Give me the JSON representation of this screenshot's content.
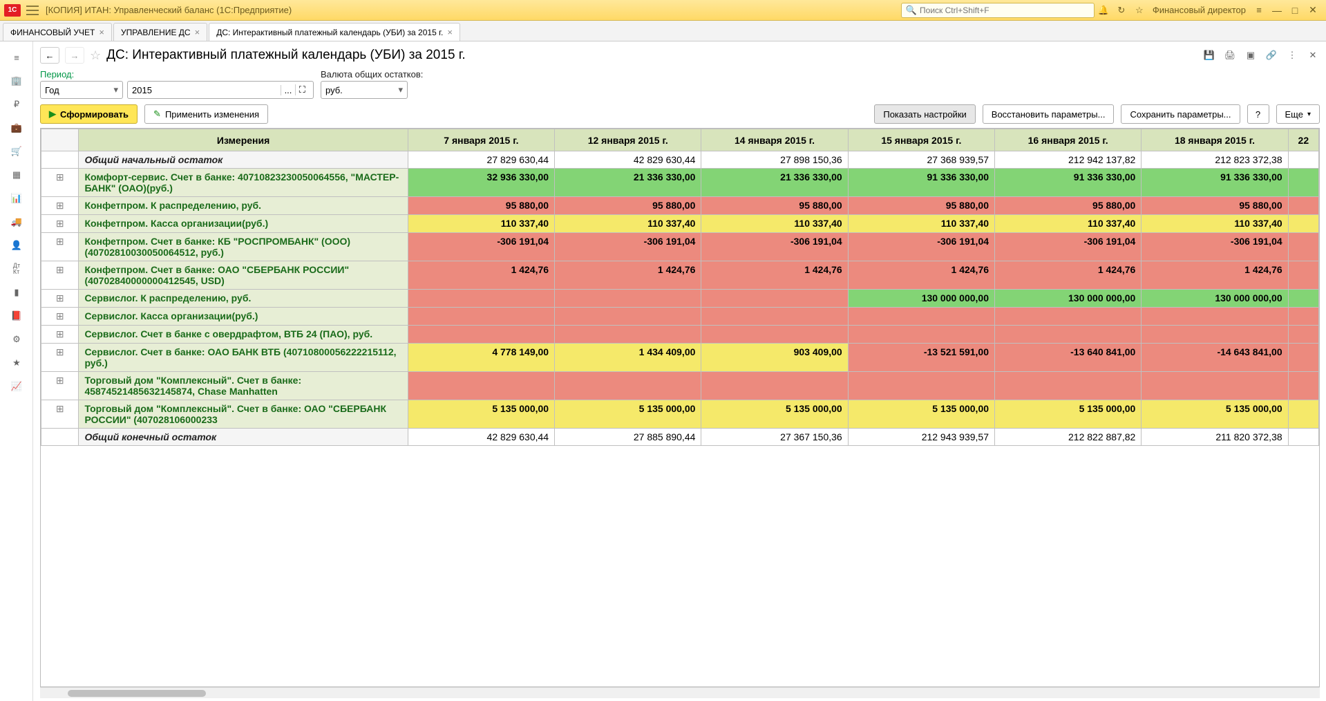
{
  "titlebar": {
    "logo": "1C",
    "title": "[КОПИЯ] ИТАН: Управленческий баланс  (1С:Предприятие)",
    "search_placeholder": "Поиск Ctrl+Shift+F",
    "user": "Финансовый директор"
  },
  "tabs": [
    {
      "label": "ФИНАНСОВЫЙ УЧЕТ",
      "closable": true,
      "active": false
    },
    {
      "label": "УПРАВЛЕНИЕ ДС",
      "closable": true,
      "active": false
    },
    {
      "label": "ДС: Интерактивный платежный календарь (УБИ)  за 2015 г.",
      "closable": true,
      "active": true
    }
  ],
  "page": {
    "title": "ДС: Интерактивный платежный календарь (УБИ)  за 2015 г.",
    "period_label": "Период:",
    "period_type": "Год",
    "period_value": "2015",
    "currency_label": "Валюта общих остатков:",
    "currency_value": "руб."
  },
  "buttons": {
    "form": "Сформировать",
    "apply": "Применить изменения",
    "show_settings": "Показать настройки",
    "restore": "Восстановить параметры...",
    "save": "Сохранить параметры...",
    "help": "?",
    "more": "Еще"
  },
  "table": {
    "header_dim": "Измерения",
    "dates": [
      "7 января 2015 г.",
      "12 января 2015 г.",
      "14 января 2015 г.",
      "15 января 2015 г.",
      "16 января 2015 г.",
      "18 января 2015 г."
    ],
    "last_col": "22",
    "rows": [
      {
        "exp": "",
        "label": "Общий начальный остаток",
        "total": true,
        "cells": [
          {
            "v": "27 829 630,44",
            "c": "white"
          },
          {
            "v": "42 829 630,44",
            "c": "white"
          },
          {
            "v": "27 898 150,36",
            "c": "white"
          },
          {
            "v": "27 368 939,57",
            "c": "white"
          },
          {
            "v": "212 942 137,82",
            "c": "white"
          },
          {
            "v": "212 823 372,38",
            "c": "white"
          }
        ]
      },
      {
        "exp": "+",
        "label": "Комфорт-сервис. Счет в банке: 40710823230050064556, \"МАСТЕР-БАНК\" (ОАО)(руб.)",
        "cells": [
          {
            "v": "32 936 330,00",
            "c": "green"
          },
          {
            "v": "21 336 330,00",
            "c": "green"
          },
          {
            "v": "21 336 330,00",
            "c": "green"
          },
          {
            "v": "91 336 330,00",
            "c": "green"
          },
          {
            "v": "91 336 330,00",
            "c": "green"
          },
          {
            "v": "91 336 330,00",
            "c": "green"
          }
        ]
      },
      {
        "exp": "+",
        "label": "Конфетпром. К распределению, руб.",
        "cells": [
          {
            "v": "95 880,00",
            "c": "red"
          },
          {
            "v": "95 880,00",
            "c": "red"
          },
          {
            "v": "95 880,00",
            "c": "red"
          },
          {
            "v": "95 880,00",
            "c": "red"
          },
          {
            "v": "95 880,00",
            "c": "red"
          },
          {
            "v": "95 880,00",
            "c": "red"
          }
        ]
      },
      {
        "exp": "+",
        "label": "Конфетпром. Касса организации(руб.)",
        "cells": [
          {
            "v": "110 337,40",
            "c": "yellow"
          },
          {
            "v": "110 337,40",
            "c": "yellow"
          },
          {
            "v": "110 337,40",
            "c": "yellow"
          },
          {
            "v": "110 337,40",
            "c": "yellow"
          },
          {
            "v": "110 337,40",
            "c": "yellow"
          },
          {
            "v": "110 337,40",
            "c": "yellow"
          }
        ]
      },
      {
        "exp": "+",
        "label": "Конфетпром. Счет в банке: КБ \"РОСПРОМБАНК\" (ООО) (40702810030050064512, руб.)",
        "cells": [
          {
            "v": "-306 191,04",
            "c": "red"
          },
          {
            "v": "-306 191,04",
            "c": "red"
          },
          {
            "v": "-306 191,04",
            "c": "red"
          },
          {
            "v": "-306 191,04",
            "c": "red"
          },
          {
            "v": "-306 191,04",
            "c": "red"
          },
          {
            "v": "-306 191,04",
            "c": "red"
          }
        ]
      },
      {
        "exp": "+",
        "label": "Конфетпром. Счет в банке: ОАО \"СБЕРБАНК РОССИИ\" (40702840000000412545, USD)",
        "cells": [
          {
            "v": "1 424,76",
            "c": "red"
          },
          {
            "v": "1 424,76",
            "c": "red"
          },
          {
            "v": "1 424,76",
            "c": "red"
          },
          {
            "v": "1 424,76",
            "c": "red"
          },
          {
            "v": "1 424,76",
            "c": "red"
          },
          {
            "v": "1 424,76",
            "c": "red"
          }
        ]
      },
      {
        "exp": "+",
        "label": "Сервислог. К распределению, руб.",
        "cells": [
          {
            "v": "",
            "c": "red"
          },
          {
            "v": "",
            "c": "red"
          },
          {
            "v": "",
            "c": "red"
          },
          {
            "v": "130 000 000,00",
            "c": "green"
          },
          {
            "v": "130 000 000,00",
            "c": "green"
          },
          {
            "v": "130 000 000,00",
            "c": "green"
          }
        ]
      },
      {
        "exp": "+",
        "label": "Сервислог. Касса организации(руб.)",
        "cells": [
          {
            "v": "",
            "c": "red"
          },
          {
            "v": "",
            "c": "red"
          },
          {
            "v": "",
            "c": "red"
          },
          {
            "v": "",
            "c": "red"
          },
          {
            "v": "",
            "c": "red"
          },
          {
            "v": "",
            "c": "red"
          }
        ]
      },
      {
        "exp": "+",
        "label": "Сервислог. Счет в банке с овердрафтом, ВТБ 24 (ПАО), руб.",
        "cells": [
          {
            "v": "",
            "c": "red"
          },
          {
            "v": "",
            "c": "red"
          },
          {
            "v": "",
            "c": "red"
          },
          {
            "v": "",
            "c": "red"
          },
          {
            "v": "",
            "c": "red"
          },
          {
            "v": "",
            "c": "red"
          }
        ]
      },
      {
        "exp": "+",
        "label": "Сервислог. Счет в банке: ОАО БАНК ВТБ (40710800056222215112, руб.)",
        "cells": [
          {
            "v": "4 778 149,00",
            "c": "yellow"
          },
          {
            "v": "1 434 409,00",
            "c": "yellow"
          },
          {
            "v": "903 409,00",
            "c": "yellow"
          },
          {
            "v": "-13 521 591,00",
            "c": "red"
          },
          {
            "v": "-13 640 841,00",
            "c": "red"
          },
          {
            "v": "-14 643 841,00",
            "c": "red"
          }
        ]
      },
      {
        "exp": "+",
        "label": "Торговый дом \"Комплексный\". Счет в банке: 45874521485632145874, Chase Manhatten",
        "cells": [
          {
            "v": "",
            "c": "red"
          },
          {
            "v": "",
            "c": "red"
          },
          {
            "v": "",
            "c": "red"
          },
          {
            "v": "",
            "c": "red"
          },
          {
            "v": "",
            "c": "red"
          },
          {
            "v": "",
            "c": "red"
          }
        ]
      },
      {
        "exp": "+",
        "label": "Торговый дом \"Комплексный\". Счет в банке: ОАО \"СБЕРБАНК РОССИИ\" (407028106000233",
        "cells": [
          {
            "v": "5 135 000,00",
            "c": "yellow"
          },
          {
            "v": "5 135 000,00",
            "c": "yellow"
          },
          {
            "v": "5 135 000,00",
            "c": "yellow"
          },
          {
            "v": "5 135 000,00",
            "c": "yellow"
          },
          {
            "v": "5 135 000,00",
            "c": "yellow"
          },
          {
            "v": "5 135 000,00",
            "c": "yellow"
          }
        ]
      },
      {
        "exp": "",
        "label": "Общий конечный остаток",
        "total": true,
        "cells": [
          {
            "v": "42 829 630,44",
            "c": "white"
          },
          {
            "v": "27 885 890,44",
            "c": "white"
          },
          {
            "v": "27 367 150,36",
            "c": "white"
          },
          {
            "v": "212 943 939,57",
            "c": "white"
          },
          {
            "v": "212 822 887,82",
            "c": "white"
          },
          {
            "v": "211 820 372,38",
            "c": "white"
          }
        ]
      }
    ]
  },
  "colors": {
    "green": "#83d475",
    "yellow": "#f5e96a",
    "red": "#ec8a7e",
    "white": "#ffffff"
  }
}
